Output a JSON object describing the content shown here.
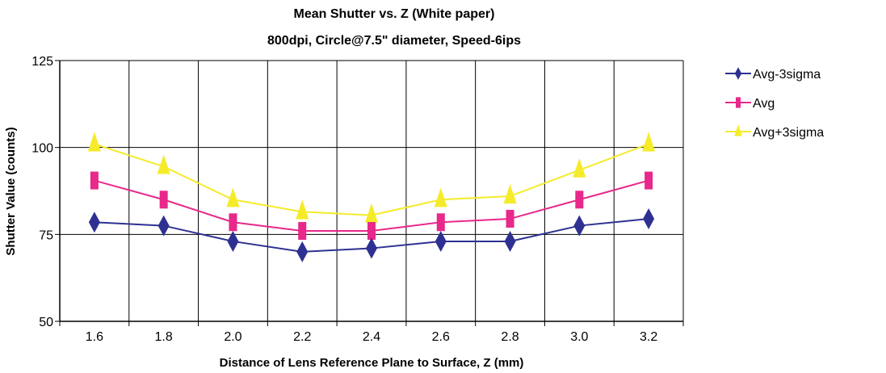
{
  "chart_data": {
    "type": "line",
    "title": "Mean Shutter vs. Z (White paper)",
    "subtitle": "800dpi, Circle@7.5\" diameter, Speed-6ips",
    "xlabel": "Distance of Lens Reference Plane to Surface, Z (mm)",
    "ylabel": "Shutter Value (counts)",
    "categories": [
      "1.6",
      "1.8",
      "2.0",
      "2.2",
      "2.4",
      "2.6",
      "2.8",
      "3.0",
      "3.2"
    ],
    "y_ticks": [
      "50",
      "75",
      "100",
      "125"
    ],
    "ylim": [
      50,
      125
    ],
    "grid": true,
    "legend_position": "right",
    "series": [
      {
        "name": "Avg-3sigma",
        "color": "#2e3192",
        "marker": "diamond",
        "values": [
          78.5,
          77.5,
          73,
          70,
          71,
          73,
          73,
          77.5,
          79.5
        ]
      },
      {
        "name": "Avg",
        "color": "#e8288a",
        "marker": "square",
        "values": [
          90.5,
          85,
          78.5,
          76,
          76,
          78.5,
          79.5,
          85,
          90.5
        ]
      },
      {
        "name": "Avg+3sigma",
        "color": "#f5eb2a",
        "marker": "triangle",
        "values": [
          101,
          94.5,
          85,
          81.5,
          80.5,
          85,
          86,
          93.5,
          101
        ]
      }
    ]
  }
}
